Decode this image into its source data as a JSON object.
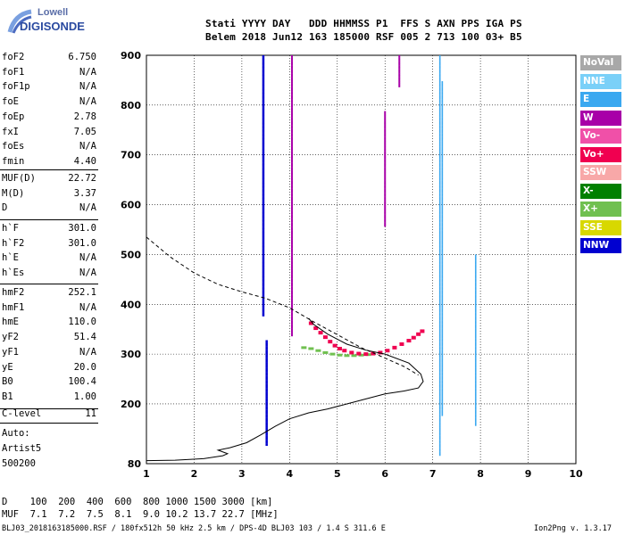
{
  "logo": {
    "top": "Lowell",
    "bottom": "DIGISONDE"
  },
  "header": {
    "line1": "Stati YYYY DAY   DDD HHMMSS P1  FFS S AXN PPS IGA PS",
    "line2": "Belem 2018 Jun12 163 185000 RSF 005 2 713 100 03+ B5"
  },
  "params_a": [
    {
      "k": "foF2",
      "v": "6.750"
    },
    {
      "k": "foF1",
      "v": "N/A"
    },
    {
      "k": "foF1p",
      "v": "N/A"
    },
    {
      "k": "foE",
      "v": "N/A"
    },
    {
      "k": "foEp",
      "v": "2.78"
    },
    {
      "k": "fxI",
      "v": "7.05"
    },
    {
      "k": "foEs",
      "v": "N/A"
    },
    {
      "k": "fmin",
      "v": "4.40"
    }
  ],
  "params_b": [
    {
      "k": "MUF(D)",
      "v": "22.72"
    },
    {
      "k": "M(D)",
      "v": "3.37"
    },
    {
      "k": "D",
      "v": "N/A"
    }
  ],
  "params_c": [
    {
      "k": "h`F",
      "v": "301.0"
    },
    {
      "k": "h`F2",
      "v": "301.0"
    },
    {
      "k": "h`E",
      "v": "N/A"
    },
    {
      "k": "h`Es",
      "v": "N/A"
    }
  ],
  "params_d": [
    {
      "k": "hmF2",
      "v": "252.1"
    },
    {
      "k": "hmF1",
      "v": "N/A"
    },
    {
      "k": "hmE",
      "v": "110.0"
    },
    {
      "k": "yF2",
      "v": "51.4"
    },
    {
      "k": "yF1",
      "v": "N/A"
    },
    {
      "k": "yE",
      "v": "20.0"
    },
    {
      "k": "B0",
      "v": "100.4"
    },
    {
      "k": "B1",
      "v": "1.00"
    }
  ],
  "clevel": {
    "k": "C-level",
    "v": "11"
  },
  "auto": {
    "l1": "Auto:",
    "l2": "Artist5",
    "l3": "500200"
  },
  "legend": [
    {
      "name": "NoVal",
      "color": "#a8a8a8"
    },
    {
      "name": "NNE",
      "color": "#7ad0f8"
    },
    {
      "name": "E",
      "color": "#3aa8f0"
    },
    {
      "name": "W",
      "color": "#a800a8"
    },
    {
      "name": "Vo-",
      "color": "#f050a8"
    },
    {
      "name": "Vo+",
      "color": "#f00050"
    },
    {
      "name": "SSW",
      "color": "#f8a8a8"
    },
    {
      "name": "X-",
      "color": "#008000"
    },
    {
      "name": "X+",
      "color": "#70c050"
    },
    {
      "name": "SSE",
      "color": "#d8d800"
    },
    {
      "name": "NNW",
      "color": "#0000d0"
    }
  ],
  "muf_table": {
    "row1": "D    100  200  400  600  800 1000 1500 3000 [km]",
    "row2": "MUF  7.1  7.2  7.5  8.1  9.0 10.2 13.7 22.7 [MHz]"
  },
  "footer": {
    "left": "BLJ03_2018163185000.RSF / 180fx512h 50 kHz 2.5 km / DPS-4D BLJ03 103 / 1.4 S 311.6 E",
    "right": "Ion2Png v. 1.3.17"
  },
  "chart_data": {
    "type": "scatter",
    "xlim": [
      1,
      10
    ],
    "ylim": [
      80,
      900
    ],
    "x_ticks": [
      1,
      2,
      3,
      4,
      5,
      6,
      7,
      8,
      9,
      10
    ],
    "y_ticks": [
      80,
      200,
      300,
      400,
      500,
      600,
      700,
      800,
      900
    ],
    "grid": true,
    "profile_solid": [
      [
        1.0,
        86
      ],
      [
        1.6,
        87
      ],
      [
        2.2,
        90
      ],
      [
        2.6,
        96
      ],
      [
        2.7,
        100
      ],
      [
        2.5,
        107
      ],
      [
        2.75,
        112
      ],
      [
        3.1,
        122
      ],
      [
        3.4,
        138
      ],
      [
        3.7,
        155
      ],
      [
        4.0,
        170
      ],
      [
        4.4,
        182
      ],
      [
        4.8,
        190
      ],
      [
        5.2,
        200
      ],
      [
        5.6,
        210
      ],
      [
        6.0,
        220
      ],
      [
        6.4,
        226
      ],
      [
        6.7,
        232
      ],
      [
        6.8,
        245
      ],
      [
        6.75,
        260
      ],
      [
        6.5,
        282
      ],
      [
        6.0,
        300
      ],
      [
        5.6,
        308
      ],
      [
        5.2,
        320
      ],
      [
        4.8,
        340
      ],
      [
        4.5,
        360
      ],
      [
        4.4,
        372
      ]
    ],
    "profile_dashed": [
      [
        1.0,
        535
      ],
      [
        1.5,
        495
      ],
      [
        2.0,
        463
      ],
      [
        2.5,
        440
      ],
      [
        3.0,
        425
      ],
      [
        3.5,
        412
      ],
      [
        4.0,
        393
      ],
      [
        4.5,
        365
      ],
      [
        5.0,
        339
      ],
      [
        5.5,
        313
      ],
      [
        6.0,
        292
      ],
      [
        6.4,
        275
      ],
      [
        6.7,
        258
      ]
    ],
    "trace_vo_plus": [
      [
        4.45,
        362
      ],
      [
        4.55,
        352
      ],
      [
        4.65,
        343
      ],
      [
        4.75,
        334
      ],
      [
        4.85,
        325
      ],
      [
        4.95,
        317
      ],
      [
        5.05,
        311
      ],
      [
        5.15,
        307
      ],
      [
        5.3,
        303
      ],
      [
        5.45,
        301
      ],
      [
        5.6,
        300
      ],
      [
        5.75,
        301
      ],
      [
        5.9,
        303
      ],
      [
        6.05,
        307
      ],
      [
        6.2,
        313
      ],
      [
        6.35,
        320
      ],
      [
        6.5,
        327
      ],
      [
        6.6,
        333
      ],
      [
        6.7,
        340
      ],
      [
        6.78,
        346
      ]
    ],
    "trace_x_plus": [
      [
        4.3,
        313
      ],
      [
        4.45,
        311
      ],
      [
        4.6,
        307
      ],
      [
        4.75,
        303
      ],
      [
        4.9,
        300
      ],
      [
        5.05,
        298
      ],
      [
        5.2,
        297
      ],
      [
        5.35,
        297
      ],
      [
        5.5,
        298
      ],
      [
        5.65,
        299
      ]
    ],
    "columns_nnw": [
      [
        3.45,
        900,
        380
      ],
      [
        3.52,
        330,
        120
      ]
    ],
    "columns_w": [
      [
        6.3,
        900,
        840
      ],
      [
        6.0,
        790,
        560
      ],
      [
        4.05,
        900,
        340
      ]
    ],
    "columns_e": [
      [
        7.15,
        900,
        100
      ],
      [
        7.2,
        850,
        180
      ],
      [
        7.9,
        500,
        160
      ]
    ]
  }
}
